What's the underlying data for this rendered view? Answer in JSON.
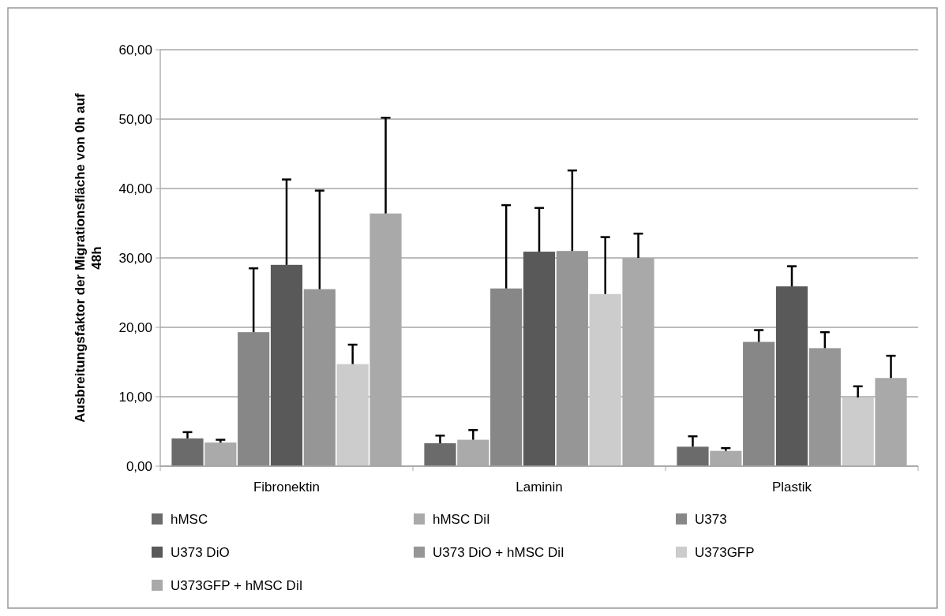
{
  "chart_data": {
    "type": "bar",
    "ylabel": "Ausbreitungsfaktor der Migrationsfläche von 0h auf 48h",
    "categories": [
      "Fibronektin",
      "Laminin",
      "Plastik"
    ],
    "series": [
      {
        "name": "hMSC",
        "color": "#6b6b6b",
        "values": [
          4.0,
          3.3,
          2.8
        ],
        "errors": [
          [
            4.0,
            4.9
          ],
          [
            3.3,
            4.4
          ],
          [
            2.8,
            4.3
          ]
        ]
      },
      {
        "name": "hMSC DiI",
        "color": "#aaaaaa",
        "values": [
          3.4,
          3.8,
          2.2
        ],
        "errors": [
          [
            3.4,
            3.8
          ],
          [
            3.8,
            5.2
          ],
          [
            2.2,
            2.6
          ]
        ]
      },
      {
        "name": "U373",
        "color": "#878787",
        "values": [
          19.3,
          25.6,
          17.9
        ],
        "errors": [
          [
            19.3,
            28.5
          ],
          [
            25.6,
            37.6
          ],
          [
            17.9,
            19.6
          ]
        ]
      },
      {
        "name": "U373 DiO",
        "color": "#595959",
        "values": [
          29.0,
          30.9,
          25.9
        ],
        "errors": [
          [
            29.0,
            41.3
          ],
          [
            30.9,
            37.2
          ],
          [
            25.9,
            28.8
          ]
        ]
      },
      {
        "name": "U373 DiO + hMSC DiI",
        "color": "#969696",
        "values": [
          25.5,
          31.0,
          17.0
        ],
        "errors": [
          [
            25.5,
            39.7
          ],
          [
            31.0,
            42.6
          ],
          [
            17.0,
            19.3
          ]
        ]
      },
      {
        "name": "U373GFP",
        "color": "#cccccc",
        "values": [
          14.7,
          24.8,
          9.9
        ],
        "errors": [
          [
            14.7,
            17.5
          ],
          [
            24.8,
            33.0
          ],
          [
            9.9,
            11.5
          ]
        ]
      },
      {
        "name": "U373GFP + hMSC DiI",
        "color": "#a9a9a9",
        "values": [
          36.4,
          30.0,
          12.7
        ],
        "errors": [
          [
            36.4,
            50.2
          ],
          [
            30.0,
            33.5
          ],
          [
            12.7,
            15.9
          ]
        ]
      }
    ],
    "ylim": [
      0,
      60
    ],
    "yticks": [
      {
        "value": 0,
        "label": "0,00"
      },
      {
        "value": 10,
        "label": "10,00"
      },
      {
        "value": 20,
        "label": "20,00"
      },
      {
        "value": 30,
        "label": "30,00"
      },
      {
        "value": 40,
        "label": "40,00"
      },
      {
        "value": 50,
        "label": "50,00"
      },
      {
        "value": 60,
        "label": "60,00"
      }
    ],
    "grid": "y",
    "legend": "bottom"
  }
}
